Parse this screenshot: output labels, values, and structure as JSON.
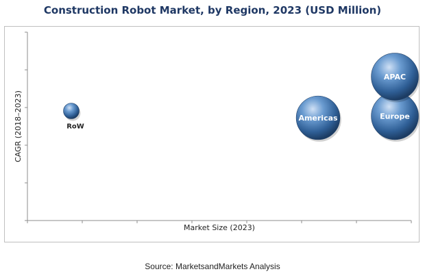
{
  "chart_data": {
    "type": "scatter",
    "title": "Construction Robot Market, by Region, 2023 (USD Million)",
    "xlabel": "Market Size (2023)",
    "ylabel": "CAGR (2018–2023)",
    "source": "Source: MarketsandMarkets Analysis",
    "grid": false,
    "points": [
      {
        "label": "RoW",
        "x": 0.8,
        "y": 6.4,
        "size": 1,
        "label_position": "below"
      },
      {
        "label": "Americas",
        "x": 5.3,
        "y": 6.0,
        "size": 3,
        "label_position": "inside"
      },
      {
        "label": "Europe",
        "x": 6.7,
        "y": 6.1,
        "size": 3.5,
        "label_position": "inside"
      },
      {
        "label": "APAC",
        "x": 6.7,
        "y": 8.4,
        "size": 3.5,
        "label_position": "inside"
      }
    ],
    "xlim": [
      0,
      7
    ],
    "ylim": [
      0,
      11
    ],
    "bubble_color": "#3a6ea8"
  }
}
